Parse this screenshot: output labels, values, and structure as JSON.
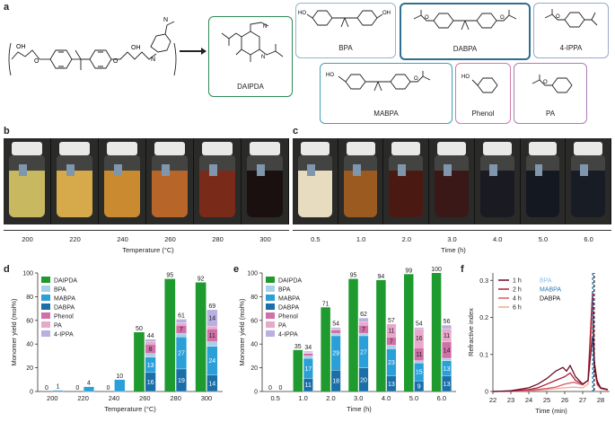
{
  "panel_letters": {
    "a": "a",
    "b": "b",
    "c": "c",
    "d": "d",
    "e": "e",
    "f": "f"
  },
  "panel_a": {
    "molecules": [
      {
        "name": "DAIPDA",
        "color": "#2e8b57"
      },
      {
        "name": "BPA",
        "color": "#8fb8c8"
      },
      {
        "name": "DABPA",
        "color": "#2f6f8f"
      },
      {
        "name": "4-IPPA",
        "color": "#9aa8c8"
      },
      {
        "name": "MABPA",
        "color": "#3fa0b8"
      },
      {
        "name": "Phenol",
        "color": "#d07aa8"
      },
      {
        "name": "PA",
        "color": "#b07ab8"
      }
    ]
  },
  "panel_b": {
    "ticks": [
      "200",
      "220",
      "240",
      "260",
      "280",
      "300"
    ],
    "xlabel": "Temperature (°C)",
    "vial_colors": [
      "#c8b860",
      "#d6a94a",
      "#c98a30",
      "#b8652a",
      "#7a2a18",
      "#1a1010"
    ]
  },
  "panel_c": {
    "ticks": [
      "0.5",
      "1.0",
      "2.0",
      "3.0",
      "4.0",
      "5.0",
      "6.0"
    ],
    "xlabel": "Time (h)",
    "vial_colors": [
      "#e8dcc0",
      "#9a5a20",
      "#4a1a12",
      "#3a1818",
      "#1a1a22",
      "#141820",
      "#181c24"
    ]
  },
  "legend_items": [
    {
      "name": "DAIPDA",
      "color": "#1e9a2e"
    },
    {
      "name": "BPA",
      "color": "#a8d0e8"
    },
    {
      "name": "MABPA",
      "color": "#2a9fd8"
    },
    {
      "name": "DABPA",
      "color": "#1a6fa8"
    },
    {
      "name": "Phenol",
      "color": "#d070a8"
    },
    {
      "name": "PA",
      "color": "#e8a8cc"
    },
    {
      "name": "4-IPPA",
      "color": "#b8b0e0"
    }
  ],
  "chart_data": [
    {
      "type": "bar",
      "panel": "d",
      "xlabel": "Temperature (°C)",
      "ylabel": "Monomer yield (mol%)",
      "ylim": [
        0,
        100
      ],
      "categories": [
        "200",
        "220",
        "240",
        "260",
        "280",
        "300"
      ],
      "totals_left": [
        "0",
        "0",
        "0",
        "50",
        "95",
        "92"
      ],
      "totals_right": [
        "1",
        "4",
        "10",
        "44",
        "61",
        "69"
      ],
      "daipda": [
        0,
        0,
        0,
        50,
        95,
        92
      ],
      "right_stack": [
        {
          "name": "DABPA",
          "values": [
            0,
            0,
            0,
            16,
            19,
            14
          ]
        },
        {
          "name": "MABPA",
          "values": [
            1,
            4,
            10,
            13,
            27,
            24
          ]
        },
        {
          "name": "BPA",
          "values": [
            0,
            0,
            0,
            3,
            3,
            4
          ]
        },
        {
          "name": "Phenol",
          "values": [
            0,
            0,
            0,
            8,
            7,
            11
          ]
        },
        {
          "name": "PA",
          "values": [
            0,
            0,
            0,
            2,
            2,
            2
          ]
        },
        {
          "name": "4-IPPA",
          "values": [
            0,
            0,
            0,
            2,
            3,
            14
          ]
        }
      ],
      "segment_labels": [
        [],
        [],
        [],
        [
          {
            "series": "DABPA",
            "text": "16"
          },
          {
            "series": "MABPA",
            "text": "13"
          },
          {
            "series": "Phenol",
            "text": "8"
          }
        ],
        [
          {
            "series": "DABPA",
            "text": "19"
          },
          {
            "series": "MABPA",
            "text": "27"
          },
          {
            "series": "Phenol",
            "text": "7"
          }
        ],
        [
          {
            "series": "DABPA",
            "text": "14"
          },
          {
            "series": "MABPA",
            "text": "24"
          },
          {
            "series": "Phenol",
            "text": "11"
          },
          {
            "series": "4-IPPA",
            "text": "14"
          }
        ]
      ]
    },
    {
      "type": "bar",
      "panel": "e",
      "xlabel": "Time (h)",
      "ylabel": "Monomer yield (mol%)",
      "ylim": [
        0,
        100
      ],
      "categories": [
        "0.5",
        "1.0",
        "2.0",
        "3.0",
        "4.0",
        "5.0",
        "6.0"
      ],
      "totals_left": [
        "0",
        "35",
        "71",
        "95",
        "94",
        "99",
        "100"
      ],
      "totals_right": [
        "0",
        "34",
        "54",
        "62",
        "57",
        "54",
        "56"
      ],
      "daipda": [
        0,
        35,
        71,
        95,
        94,
        99,
        100
      ],
      "right_stack": [
        {
          "name": "DABPA",
          "values": [
            0,
            11,
            18,
            20,
            13,
            9,
            13
          ]
        },
        {
          "name": "MABPA",
          "values": [
            0,
            17,
            29,
            27,
            23,
            15,
            13
          ]
        },
        {
          "name": "BPA",
          "values": [
            0,
            2,
            2,
            2,
            3,
            2,
            2
          ]
        },
        {
          "name": "Phenol",
          "values": [
            0,
            2,
            3,
            7,
            7,
            11,
            14
          ]
        },
        {
          "name": "PA",
          "values": [
            0,
            1,
            1,
            3,
            11,
            16,
            11
          ]
        },
        {
          "name": "4-IPPA",
          "values": [
            0,
            1,
            1,
            3,
            0,
            1,
            3
          ]
        }
      ],
      "segment_labels": [
        [],
        [
          {
            "series": "DABPA",
            "text": "11"
          },
          {
            "series": "MABPA",
            "text": "17"
          }
        ],
        [
          {
            "series": "DABPA",
            "text": "18"
          },
          {
            "series": "MABPA",
            "text": "29"
          }
        ],
        [
          {
            "series": "DABPA",
            "text": "20"
          },
          {
            "series": "MABPA",
            "text": "27"
          },
          {
            "series": "Phenol",
            "text": "7"
          }
        ],
        [
          {
            "series": "DABPA",
            "text": "13"
          },
          {
            "series": "MABPA",
            "text": "23"
          },
          {
            "series": "Phenol",
            "text": "7"
          },
          {
            "series": "PA",
            "text": "11"
          }
        ],
        [
          {
            "series": "DABPA",
            "text": "9"
          },
          {
            "series": "MABPA",
            "text": "15"
          },
          {
            "series": "Phenol",
            "text": "11"
          },
          {
            "series": "PA",
            "text": "16"
          }
        ],
        [
          {
            "series": "DABPA",
            "text": "13"
          },
          {
            "series": "MABPA",
            "text": "13"
          },
          {
            "series": "Phenol",
            "text": "14"
          },
          {
            "series": "PA",
            "text": "11"
          }
        ]
      ]
    },
    {
      "type": "line",
      "panel": "f",
      "xlabel": "Time (min)",
      "ylabel": "Refractive index",
      "xlim": [
        22,
        28.5
      ],
      "ylim": [
        0,
        0.32
      ],
      "xticks": [
        "22",
        "23",
        "24",
        "25",
        "26",
        "27",
        "28"
      ],
      "yticks": [
        "0",
        "0.1",
        "0.2",
        "0.3"
      ],
      "legend_series": [
        {
          "name": "1 h",
          "color": "#6a0f2a"
        },
        {
          "name": "2 h",
          "color": "#a8203a"
        },
        {
          "name": "4 h",
          "color": "#d85a6a"
        },
        {
          "name": "6 h",
          "color": "#f0a890"
        }
      ],
      "legend_markers": [
        {
          "name": "BPA",
          "color": "#88bde0"
        },
        {
          "name": "MABPA",
          "color": "#2a7ab8"
        },
        {
          "name": "DABPA",
          "color": "#111111"
        }
      ],
      "series": [
        {
          "name": "1 h",
          "x": [
            22,
            23,
            24,
            24.5,
            25,
            25.5,
            25.9,
            26.1,
            26.3,
            26.6,
            27,
            27.3,
            27.55,
            27.7,
            27.85,
            28,
            28.4
          ],
          "y": [
            0,
            0.002,
            0.01,
            0.02,
            0.035,
            0.055,
            0.065,
            0.055,
            0.07,
            0.04,
            0.02,
            0.03,
            0.15,
            0.05,
            0.02,
            0.01,
            0.005
          ]
        },
        {
          "name": "2 h",
          "x": [
            22,
            23,
            24,
            24.5,
            25,
            25.5,
            26,
            26.3,
            26.6,
            27,
            27.3,
            27.55,
            27.65,
            27.8,
            28,
            28.4
          ],
          "y": [
            0,
            0.001,
            0.005,
            0.01,
            0.02,
            0.03,
            0.04,
            0.05,
            0.03,
            0.02,
            0.03,
            0.27,
            0.08,
            0.03,
            0.01,
            0.005
          ]
        },
        {
          "name": "4 h",
          "x": [
            22,
            23,
            24,
            25,
            25.5,
            26,
            26.5,
            27,
            27.3,
            27.55,
            27.65,
            27.8,
            28,
            28.4
          ],
          "y": [
            0,
            0.001,
            0.003,
            0.008,
            0.012,
            0.02,
            0.025,
            0.018,
            0.03,
            0.26,
            0.07,
            0.02,
            0.008,
            0.004
          ]
        },
        {
          "name": "6 h",
          "x": [
            22,
            23,
            24,
            25,
            26,
            26.5,
            27,
            27.3,
            27.55,
            27.65,
            27.8,
            28,
            28.4
          ],
          "y": [
            0,
            0.001,
            0.002,
            0.005,
            0.01,
            0.012,
            0.01,
            0.02,
            0.2,
            0.06,
            0.02,
            0.008,
            0.003
          ]
        }
      ],
      "reference_lines": [
        {
          "x": 27.6,
          "colors": [
            "#2a7ab8",
            "#111111"
          ]
        }
      ]
    }
  ]
}
